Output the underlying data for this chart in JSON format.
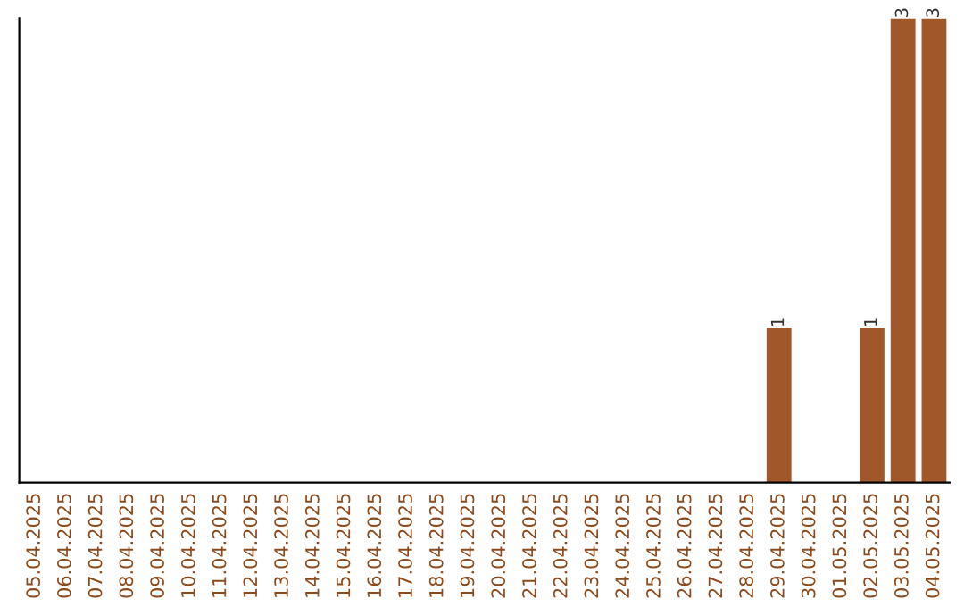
{
  "chart_data": {
    "type": "bar",
    "categories": [
      "05.04.2025",
      "06.04.2025",
      "07.04.2025",
      "08.04.2025",
      "09.04.2025",
      "10.04.2025",
      "11.04.2025",
      "12.04.2025",
      "13.04.2025",
      "14.04.2025",
      "15.04.2025",
      "16.04.2025",
      "17.04.2025",
      "18.04.2025",
      "19.04.2025",
      "20.04.2025",
      "21.04.2025",
      "22.04.2025",
      "23.04.2025",
      "24.04.2025",
      "25.04.2025",
      "26.04.2025",
      "27.04.2025",
      "28.04.2025",
      "29.04.2025",
      "30.04.2025",
      "01.05.2025",
      "02.05.2025",
      "03.05.2025",
      "04.05.2025"
    ],
    "values": [
      null,
      null,
      null,
      null,
      null,
      null,
      null,
      null,
      null,
      null,
      null,
      null,
      null,
      null,
      null,
      null,
      null,
      null,
      null,
      null,
      null,
      null,
      null,
      null,
      1,
      null,
      null,
      1,
      3,
      3
    ],
    "ylim": [
      0,
      3
    ],
    "value_labels": [
      null,
      null,
      null,
      null,
      null,
      null,
      null,
      null,
      null,
      null,
      null,
      null,
      null,
      null,
      null,
      null,
      null,
      null,
      null,
      null,
      null,
      null,
      null,
      null,
      "1",
      null,
      null,
      "1",
      "3",
      "3"
    ],
    "color": "#a0582a",
    "tick_labels": "x",
    "grid": false,
    "legend": false
  }
}
